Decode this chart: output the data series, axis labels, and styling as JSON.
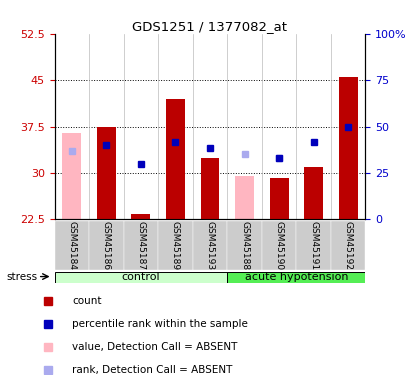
{
  "title": "GDS1251 / 1377082_at",
  "samples": [
    "GSM45184",
    "GSM45186",
    "GSM45187",
    "GSM45189",
    "GSM45193",
    "GSM45188",
    "GSM45190",
    "GSM45191",
    "GSM45192"
  ],
  "ylim": [
    22.5,
    52.5
  ],
  "yticks": [
    22.5,
    30,
    37.5,
    45,
    52.5
  ],
  "right_yticks": [
    0,
    25,
    50,
    75,
    100
  ],
  "right_ylim": [
    0,
    100
  ],
  "red_bars": [
    null,
    37.5,
    23.3,
    42.0,
    32.5,
    null,
    29.2,
    31.0,
    45.5
  ],
  "pink_bars": [
    36.5,
    null,
    null,
    null,
    null,
    29.5,
    29.2,
    null,
    null
  ],
  "blue_squares": [
    null,
    34.5,
    31.5,
    35.0,
    34.0,
    null,
    32.5,
    35.0,
    37.5
  ],
  "light_blue_squares": [
    33.5,
    null,
    null,
    null,
    null,
    33.0,
    32.5,
    null,
    null
  ],
  "bar_width": 0.55,
  "bar_bottom": 22.5,
  "colors": {
    "red_bar": "#bb0000",
    "pink_bar": "#ffb6c1",
    "blue_square": "#0000bb",
    "light_blue_square": "#aaaaee",
    "tick_left": "#cc0000",
    "tick_right": "#0000cc",
    "group_control": "#ccffcc",
    "group_acute": "#55ee55",
    "sample_bg": "#cccccc"
  },
  "legend": [
    {
      "label": "count",
      "color": "#bb0000"
    },
    {
      "label": "percentile rank within the sample",
      "color": "#0000bb"
    },
    {
      "label": "value, Detection Call = ABSENT",
      "color": "#ffb6c1"
    },
    {
      "label": "rank, Detection Call = ABSENT",
      "color": "#aaaaee"
    }
  ],
  "ctrl_samples": [
    0,
    1,
    2,
    3,
    4
  ],
  "acute_samples": [
    5,
    6,
    7,
    8
  ]
}
